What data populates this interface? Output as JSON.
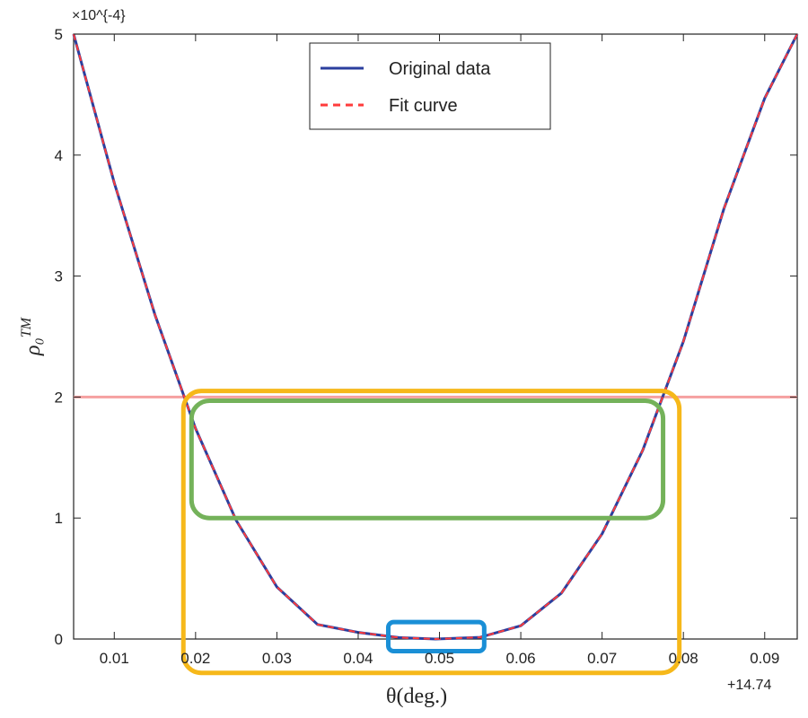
{
  "chart_data": {
    "type": "line",
    "multiplier_label": "×10^{-4}",
    "offset_label": "+14.74",
    "xlabel": "θ(deg.)",
    "ylabel": "ρ₀",
    "ylabel_sup": "TM",
    "xlim": [
      0.005,
      0.094
    ],
    "ylim": [
      0,
      5
    ],
    "xticks": [
      0.01,
      0.02,
      0.03,
      0.04,
      0.05,
      0.06,
      0.07,
      0.08,
      0.09
    ],
    "xtick_labels": [
      "0.01",
      "0.02",
      "0.03",
      "0.04",
      "0.05",
      "0.06",
      "0.07",
      "0.08",
      "0.09"
    ],
    "yticks": [
      0,
      1,
      2,
      3,
      4,
      5
    ],
    "ytick_labels": [
      "0",
      "1",
      "2",
      "3",
      "4",
      "5"
    ],
    "legend": {
      "placement": "top-center",
      "entries": [
        "Original data",
        "Fit curve"
      ]
    },
    "series": [
      {
        "name": "Original data",
        "style": "solid",
        "color": "#2b3f9e",
        "x": [
          0.005,
          0.01,
          0.015,
          0.02,
          0.025,
          0.03,
          0.035,
          0.04,
          0.045,
          0.0495,
          0.055,
          0.06,
          0.065,
          0.07,
          0.075,
          0.08,
          0.085,
          0.09,
          0.094
        ],
        "y": [
          5.0,
          3.77,
          2.68,
          1.74,
          0.98,
          0.43,
          0.12,
          0.055,
          0.012,
          0.0,
          0.014,
          0.11,
          0.38,
          0.87,
          1.56,
          2.46,
          3.56,
          4.47,
          5.0
        ]
      },
      {
        "name": "Fit curve",
        "style": "dashed",
        "color": "#ff3b3b",
        "x": [
          0.005,
          0.01,
          0.015,
          0.02,
          0.025,
          0.03,
          0.035,
          0.04,
          0.045,
          0.0495,
          0.055,
          0.06,
          0.065,
          0.07,
          0.075,
          0.08,
          0.085,
          0.09,
          0.094
        ],
        "y": [
          5.0,
          3.77,
          2.68,
          1.74,
          0.98,
          0.43,
          0.12,
          0.055,
          0.012,
          0.0,
          0.014,
          0.11,
          0.38,
          0.87,
          1.56,
          2.46,
          3.56,
          4.47,
          5.0
        ]
      }
    ],
    "reference_line": {
      "y": 2,
      "color": "#f5a0a0"
    },
    "highlight_boxes": [
      {
        "name": "orange",
        "color": "#f6b81a",
        "x": [
          0.0185,
          0.0795
        ],
        "y": [
          -0.28,
          2.05
        ]
      },
      {
        "name": "green",
        "color": "#74b25a",
        "x": [
          0.0195,
          0.0775
        ],
        "y": [
          1.0,
          1.97
        ]
      },
      {
        "name": "blue",
        "color": "#1a8fd6",
        "x": [
          0.0437,
          0.0555
        ],
        "y": [
          -0.1,
          0.14
        ]
      }
    ],
    "grid": false
  }
}
